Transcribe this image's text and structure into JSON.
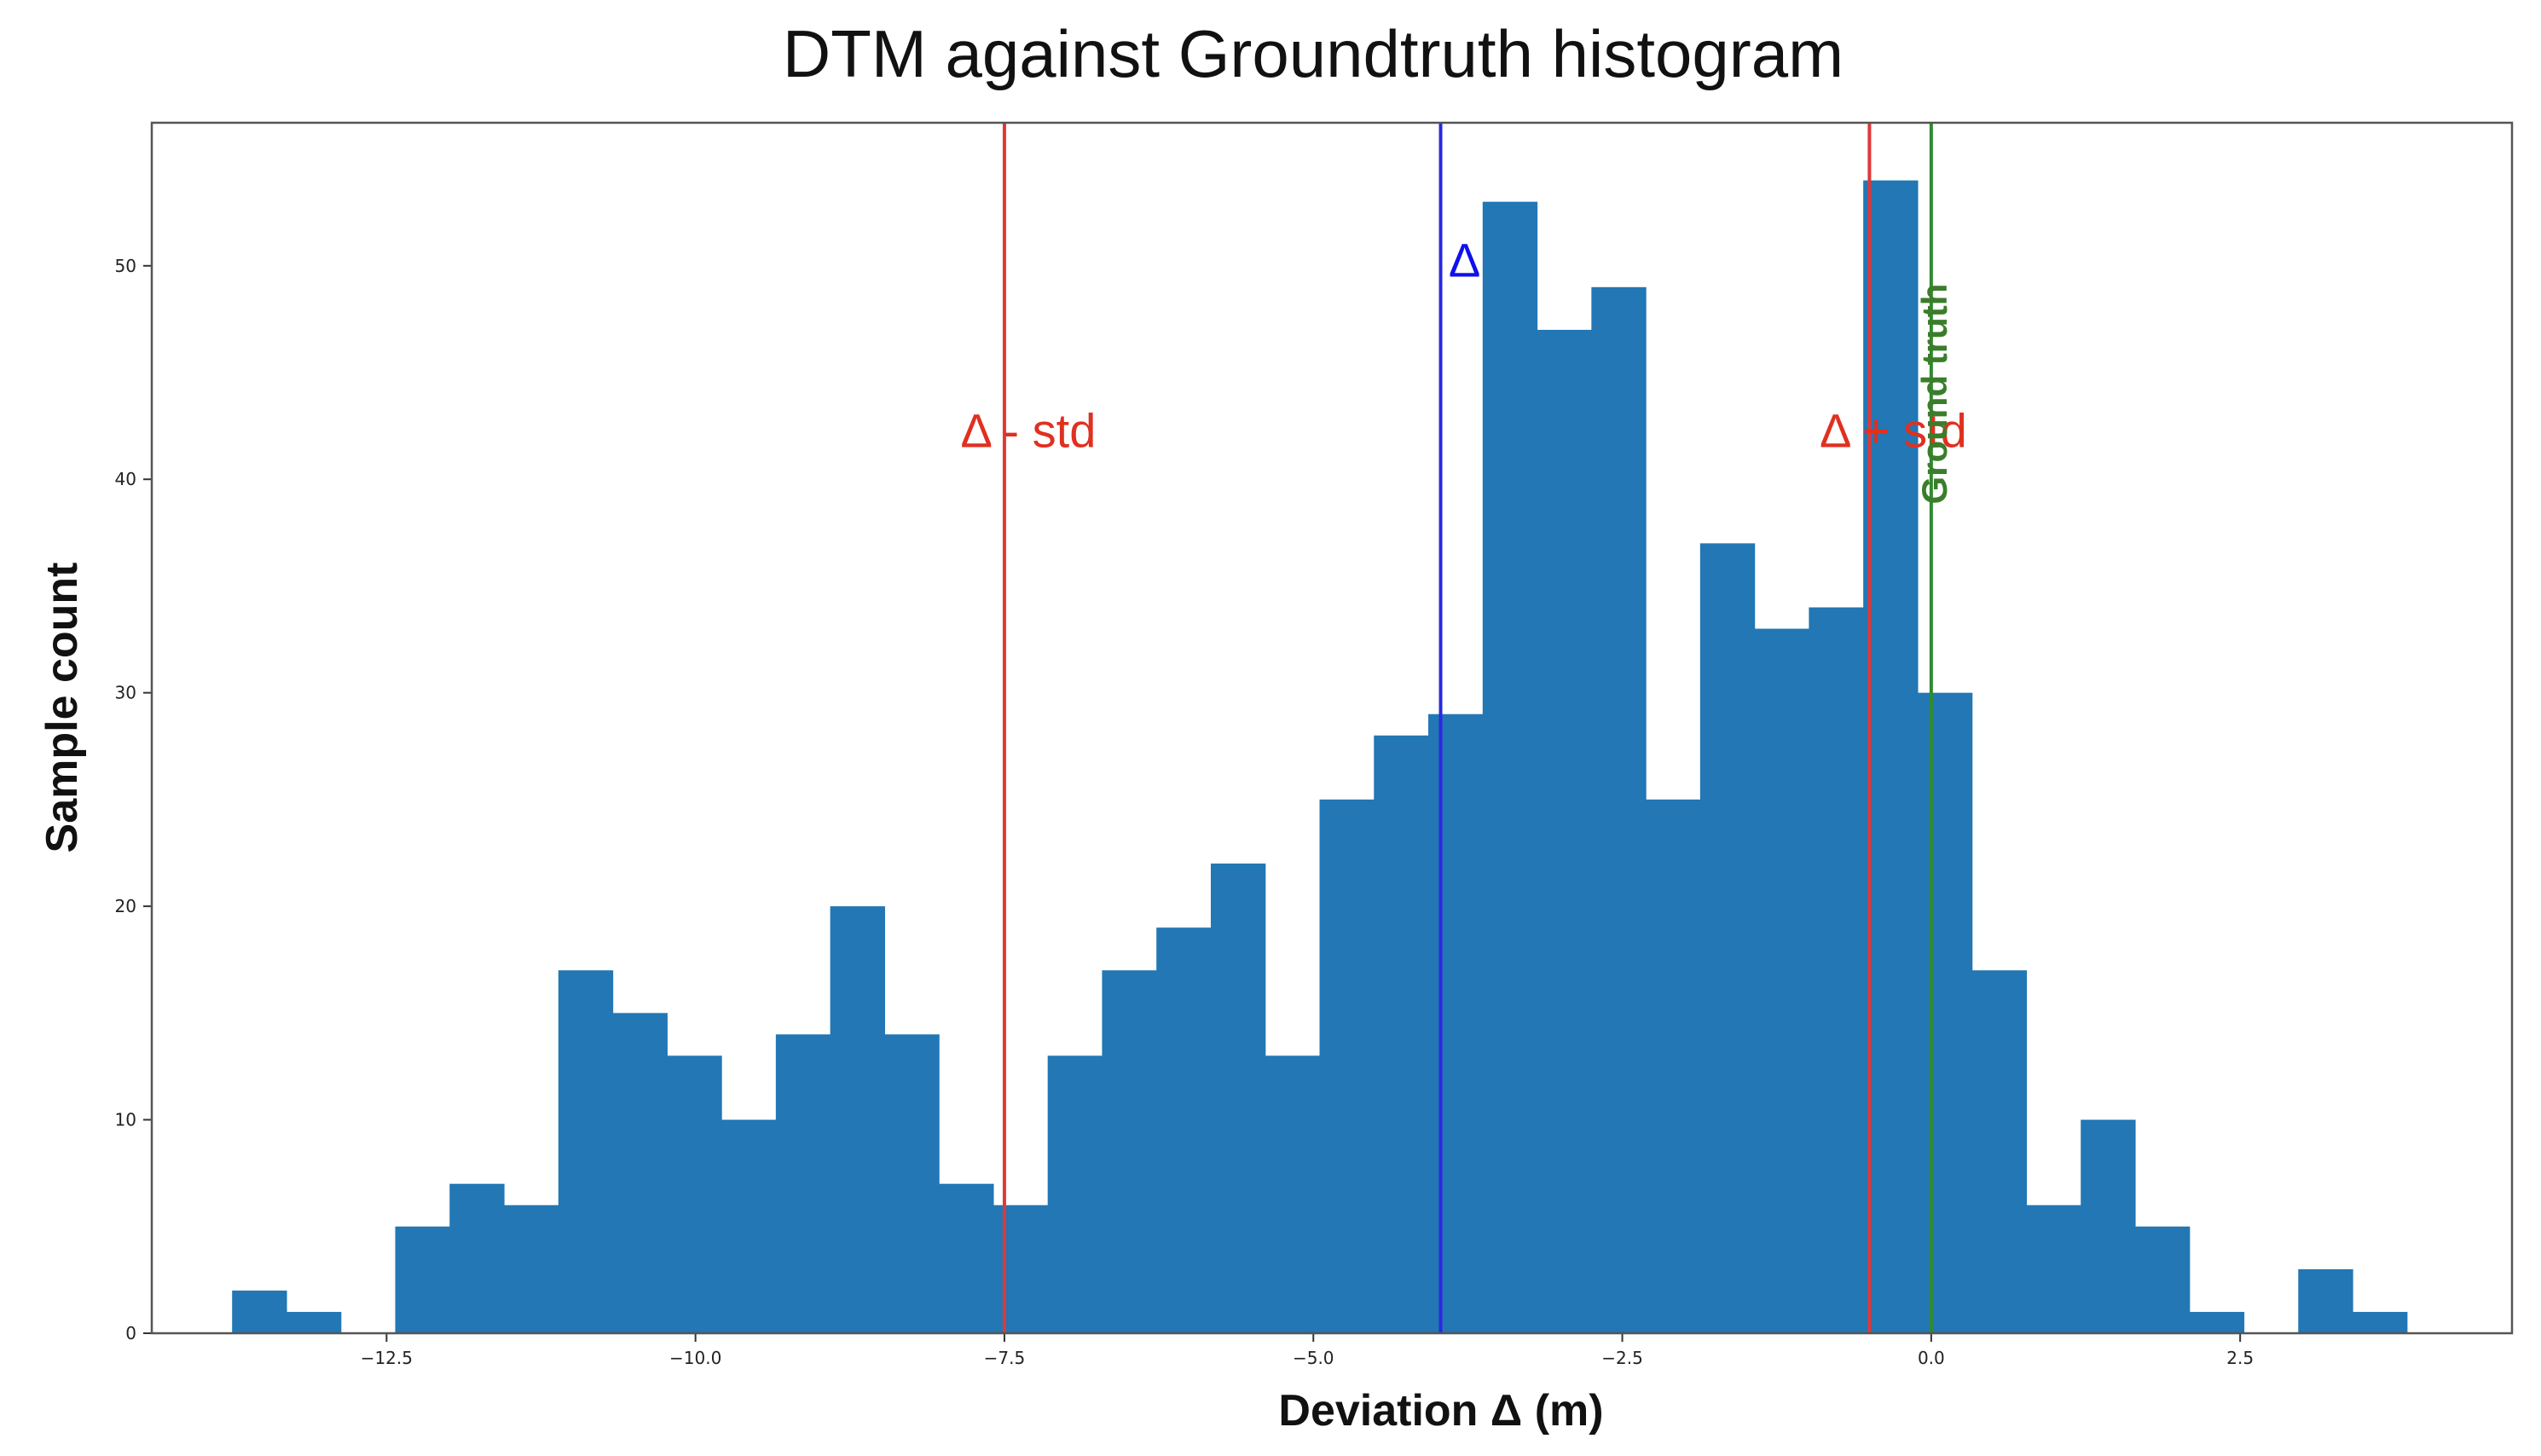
{
  "chart_data": {
    "type": "bar",
    "title": "DTM against Groundtruth histogram",
    "xlabel": "Deviation Δ (m)",
    "ylabel": "Sample count",
    "xlim": [
      -14.4,
      4.7
    ],
    "ylim": [
      0,
      56.7
    ],
    "grid": false,
    "legend": "none",
    "bar_color": "#2277b4",
    "bin_width": 0.44,
    "x_ticks": [
      {
        "value": -12.5,
        "label": "−12.5"
      },
      {
        "value": -10.0,
        "label": "−10.0"
      },
      {
        "value": -7.5,
        "label": "−7.5"
      },
      {
        "value": -5.0,
        "label": "−5.0"
      },
      {
        "value": -2.5,
        "label": "−2.5"
      },
      {
        "value": 0.0,
        "label": "0.0"
      },
      {
        "value": 2.5,
        "label": "2.5"
      }
    ],
    "y_ticks": [
      {
        "value": 0,
        "label": "0"
      },
      {
        "value": 10,
        "label": "10"
      },
      {
        "value": 20,
        "label": "20"
      },
      {
        "value": 30,
        "label": "30"
      },
      {
        "value": 40,
        "label": "40"
      },
      {
        "value": 50,
        "label": "50"
      }
    ],
    "bins": [
      {
        "x": -13.75,
        "count": 2
      },
      {
        "x": -13.31,
        "count": 1
      },
      {
        "x": -12.87,
        "count": 0
      },
      {
        "x": -12.43,
        "count": 5
      },
      {
        "x": -11.99,
        "count": 7
      },
      {
        "x": -11.55,
        "count": 6
      },
      {
        "x": -11.11,
        "count": 17
      },
      {
        "x": -10.67,
        "count": 15
      },
      {
        "x": -10.23,
        "count": 13
      },
      {
        "x": -9.79,
        "count": 10
      },
      {
        "x": -9.35,
        "count": 14
      },
      {
        "x": -8.91,
        "count": 20
      },
      {
        "x": -8.47,
        "count": 14
      },
      {
        "x": -8.03,
        "count": 7
      },
      {
        "x": -7.59,
        "count": 6
      },
      {
        "x": -7.15,
        "count": 13
      },
      {
        "x": -6.71,
        "count": 17
      },
      {
        "x": -6.27,
        "count": 19
      },
      {
        "x": -5.83,
        "count": 22
      },
      {
        "x": -5.39,
        "count": 13
      },
      {
        "x": -4.95,
        "count": 25
      },
      {
        "x": -4.51,
        "count": 28
      },
      {
        "x": -4.07,
        "count": 29
      },
      {
        "x": -3.63,
        "count": 53
      },
      {
        "x": -3.19,
        "count": 47
      },
      {
        "x": -2.75,
        "count": 49
      },
      {
        "x": -2.31,
        "count": 25
      },
      {
        "x": -1.87,
        "count": 37
      },
      {
        "x": -1.43,
        "count": 33
      },
      {
        "x": -0.99,
        "count": 34
      },
      {
        "x": -0.55,
        "count": 54
      },
      {
        "x": -0.11,
        "count": 30
      },
      {
        "x": 0.33,
        "count": 17
      },
      {
        "x": 0.77,
        "count": 6
      },
      {
        "x": 1.21,
        "count": 10
      },
      {
        "x": 1.65,
        "count": 5
      },
      {
        "x": 2.09,
        "count": 1
      },
      {
        "x": 2.53,
        "count": 0
      },
      {
        "x": 2.97,
        "count": 3
      },
      {
        "x": 3.41,
        "count": 1
      }
    ],
    "reference_lines": [
      {
        "x": -7.5,
        "label": "Δ - std",
        "color": "#e03020",
        "line_color": "#e03838",
        "label_y": 41.5
      },
      {
        "x": -3.97,
        "label": "Δ",
        "color": "#1010ee",
        "line_color": "#2a2ae0",
        "label_y": 49.5
      },
      {
        "x": -0.5,
        "label": "Δ + std",
        "color": "#e03020",
        "line_color": "#e03838",
        "label_y": 41.5
      },
      {
        "x": 0.0,
        "label": "Ground truth",
        "color": "#3a7d2a",
        "line_color": "#2f8a2f",
        "label_y": 44.0,
        "rotated": true
      }
    ]
  }
}
